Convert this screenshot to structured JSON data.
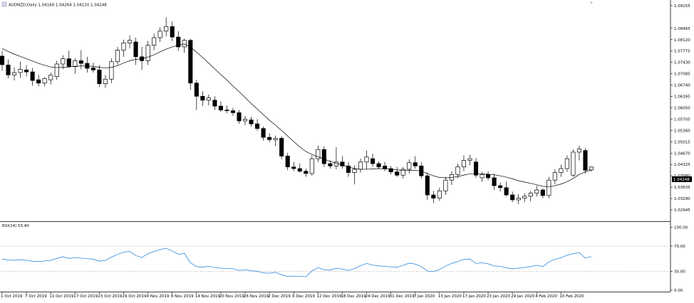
{
  "header": {
    "title": "AUDNZD,Daily  1.04160 1.04264 1.04110 1.04248"
  },
  "rsi_header": {
    "label": "RSI(14) 53.40"
  },
  "current_price_label": "1.04248",
  "colors": {
    "bull_fill": "#ffffff",
    "bear_fill": "#000000",
    "candle_outline": "#000000",
    "ma_line": "#000000",
    "rsi_line": "#2a8ae0",
    "level_line": "#b0b0b0",
    "axis": "#000000"
  },
  "chart_data": [
    {
      "type": "candlestick",
      "symbol": "AUDNZD",
      "timeframe": "Daily",
      "ohlc": {
        "open": 1.0416,
        "high": 1.04264,
        "low": 1.0411,
        "close": 1.04248
      },
      "ylim": [
        1.026,
        1.0924
      ],
      "yticks": [
        "1.09155",
        "1.08465",
        "1.08120",
        "1.07775",
        "1.07430",
        "1.07085",
        "1.06740",
        "1.06395",
        "1.06050",
        "1.05705",
        "1.05360",
        "1.05015",
        "1.04670",
        "1.04325",
        "1.03980",
        "1.03635",
        "1.03290",
        "1.02945"
      ],
      "xticks": [
        "1 Oct 2019",
        "7 Oct 2019",
        "11 Oct 2019",
        "17 Oct 2019",
        "23 Oct 2019",
        "29 Oct 2019",
        "4 Nov 2019",
        "8 Nov 2019",
        "14 Nov 2019",
        "20 Nov 2019",
        "26 Nov 2019",
        "2 Dec 2019",
        "6 Dec 2019",
        "12 Dec 2019",
        "18 Dec 2019",
        "24 Dec 2019",
        "31 Dec 2019",
        "7 Jan 2020",
        "13 Jan 2020",
        "17 Jan 2020",
        "23 Jan 2020",
        "29 Jan 2020",
        "4 Feb 2020",
        "10 Feb 2020"
      ],
      "candles": [
        {
          "o": 1.0762,
          "h": 1.0778,
          "l": 1.0718,
          "c": 1.0736
        },
        {
          "o": 1.0735,
          "h": 1.0752,
          "l": 1.0695,
          "c": 1.0705
        },
        {
          "o": 1.0705,
          "h": 1.0728,
          "l": 1.0688,
          "c": 1.0712
        },
        {
          "o": 1.0712,
          "h": 1.0745,
          "l": 1.0696,
          "c": 1.0722
        },
        {
          "o": 1.072,
          "h": 1.0735,
          "l": 1.07,
          "c": 1.0714
        },
        {
          "o": 1.0714,
          "h": 1.0726,
          "l": 1.0672,
          "c": 1.0688
        },
        {
          "o": 1.069,
          "h": 1.0705,
          "l": 1.067,
          "c": 1.068
        },
        {
          "o": 1.068,
          "h": 1.0698,
          "l": 1.067,
          "c": 1.0694
        },
        {
          "o": 1.069,
          "h": 1.0712,
          "l": 1.0676,
          "c": 1.0704
        },
        {
          "o": 1.07,
          "h": 1.0748,
          "l": 1.069,
          "c": 1.0738
        },
        {
          "o": 1.0738,
          "h": 1.0765,
          "l": 1.0722,
          "c": 1.0754
        },
        {
          "o": 1.0754,
          "h": 1.0778,
          "l": 1.0726,
          "c": 1.0731
        },
        {
          "o": 1.073,
          "h": 1.0755,
          "l": 1.0708,
          "c": 1.0748
        },
        {
          "o": 1.0748,
          "h": 1.078,
          "l": 1.0722,
          "c": 1.074
        },
        {
          "o": 1.074,
          "h": 1.076,
          "l": 1.0712,
          "c": 1.0725
        },
        {
          "o": 1.0726,
          "h": 1.0742,
          "l": 1.0712,
          "c": 1.072
        },
        {
          "o": 1.072,
          "h": 1.0735,
          "l": 1.0668,
          "c": 1.0678
        },
        {
          "o": 1.0678,
          "h": 1.0705,
          "l": 1.0665,
          "c": 1.0692
        },
        {
          "o": 1.0692,
          "h": 1.0755,
          "l": 1.068,
          "c": 1.0745
        },
        {
          "o": 1.0745,
          "h": 1.079,
          "l": 1.0735,
          "c": 1.078
        },
        {
          "o": 1.078,
          "h": 1.0812,
          "l": 1.076,
          "c": 1.0802
        },
        {
          "o": 1.0802,
          "h": 1.0825,
          "l": 1.0785,
          "c": 1.081
        },
        {
          "o": 1.0805,
          "h": 1.0818,
          "l": 1.0735,
          "c": 1.076
        },
        {
          "o": 1.076,
          "h": 1.079,
          "l": 1.072,
          "c": 1.0748
        },
        {
          "o": 1.0748,
          "h": 1.0808,
          "l": 1.0735,
          "c": 1.0795
        },
        {
          "o": 1.0795,
          "h": 1.083,
          "l": 1.078,
          "c": 1.0818
        },
        {
          "o": 1.0818,
          "h": 1.085,
          "l": 1.0805,
          "c": 1.0838
        },
        {
          "o": 1.0838,
          "h": 1.088,
          "l": 1.0822,
          "c": 1.0852
        },
        {
          "o": 1.0852,
          "h": 1.0868,
          "l": 1.0808,
          "c": 1.082
        },
        {
          "o": 1.082,
          "h": 1.0838,
          "l": 1.0778,
          "c": 1.079
        },
        {
          "o": 1.079,
          "h": 1.0815,
          "l": 1.0772,
          "c": 1.081
        },
        {
          "o": 1.081,
          "h": 1.0815,
          "l": 1.066,
          "c": 1.068
        },
        {
          "o": 1.068,
          "h": 1.069,
          "l": 1.0598,
          "c": 1.064
        },
        {
          "o": 1.064,
          "h": 1.0655,
          "l": 1.061,
          "c": 1.0628
        },
        {
          "o": 1.0628,
          "h": 1.0645,
          "l": 1.0612,
          "c": 1.0635
        },
        {
          "o": 1.0628,
          "h": 1.064,
          "l": 1.0598,
          "c": 1.061
        },
        {
          "o": 1.061,
          "h": 1.0625,
          "l": 1.0592,
          "c": 1.0598
        },
        {
          "o": 1.0598,
          "h": 1.0612,
          "l": 1.0588,
          "c": 1.0596
        },
        {
          "o": 1.0596,
          "h": 1.0605,
          "l": 1.058,
          "c": 1.059
        },
        {
          "o": 1.059,
          "h": 1.0598,
          "l": 1.0556,
          "c": 1.0565
        },
        {
          "o": 1.0565,
          "h": 1.058,
          "l": 1.0552,
          "c": 1.057
        },
        {
          "o": 1.0568,
          "h": 1.0578,
          "l": 1.0548,
          "c": 1.0556
        },
        {
          "o": 1.0556,
          "h": 1.057,
          "l": 1.0535,
          "c": 1.0542
        },
        {
          "o": 1.0542,
          "h": 1.0548,
          "l": 1.0505,
          "c": 1.0515
        },
        {
          "o": 1.0515,
          "h": 1.0528,
          "l": 1.05,
          "c": 1.0508
        },
        {
          "o": 1.0508,
          "h": 1.052,
          "l": 1.0488,
          "c": 1.0512
        },
        {
          "o": 1.0512,
          "h": 1.0518,
          "l": 1.0448,
          "c": 1.0458
        },
        {
          "o": 1.0458,
          "h": 1.0468,
          "l": 1.0415,
          "c": 1.0425
        },
        {
          "o": 1.0425,
          "h": 1.044,
          "l": 1.0412,
          "c": 1.042
        },
        {
          "o": 1.042,
          "h": 1.0436,
          "l": 1.0408,
          "c": 1.0412
        },
        {
          "o": 1.0412,
          "h": 1.042,
          "l": 1.0395,
          "c": 1.0405
        },
        {
          "o": 1.0405,
          "h": 1.046,
          "l": 1.0398,
          "c": 1.045
        },
        {
          "o": 1.045,
          "h": 1.049,
          "l": 1.044,
          "c": 1.0478
        },
        {
          "o": 1.0478,
          "h": 1.0488,
          "l": 1.0425,
          "c": 1.0435
        },
        {
          "o": 1.0435,
          "h": 1.0445,
          "l": 1.042,
          "c": 1.0428
        },
        {
          "o": 1.0428,
          "h": 1.0485,
          "l": 1.0418,
          "c": 1.044
        },
        {
          "o": 1.044,
          "h": 1.0458,
          "l": 1.042,
          "c": 1.0428
        },
        {
          "o": 1.0428,
          "h": 1.044,
          "l": 1.0395,
          "c": 1.0408
        },
        {
          "o": 1.0408,
          "h": 1.043,
          "l": 1.0372,
          "c": 1.0418
        },
        {
          "o": 1.0418,
          "h": 1.045,
          "l": 1.0408,
          "c": 1.044
        },
        {
          "o": 1.044,
          "h": 1.0475,
          "l": 1.0418,
          "c": 1.0455
        },
        {
          "o": 1.045,
          "h": 1.0465,
          "l": 1.0425,
          "c": 1.0435
        },
        {
          "o": 1.0435,
          "h": 1.0442,
          "l": 1.0418,
          "c": 1.0425
        },
        {
          "o": 1.0428,
          "h": 1.044,
          "l": 1.0412,
          "c": 1.042
        },
        {
          "o": 1.042,
          "h": 1.0428,
          "l": 1.0402,
          "c": 1.041
        },
        {
          "o": 1.041,
          "h": 1.0425,
          "l": 1.0395,
          "c": 1.04
        },
        {
          "o": 1.04,
          "h": 1.0425,
          "l": 1.039,
          "c": 1.0418
        },
        {
          "o": 1.0418,
          "h": 1.0448,
          "l": 1.0405,
          "c": 1.0438
        },
        {
          "o": 1.0438,
          "h": 1.0458,
          "l": 1.042,
          "c": 1.0428
        },
        {
          "o": 1.0428,
          "h": 1.044,
          "l": 1.039,
          "c": 1.0398
        },
        {
          "o": 1.0398,
          "h": 1.0408,
          "l": 1.0325,
          "c": 1.034
        },
        {
          "o": 1.034,
          "h": 1.0352,
          "l": 1.0315,
          "c": 1.033
        },
        {
          "o": 1.033,
          "h": 1.0362,
          "l": 1.0322,
          "c": 1.0352
        },
        {
          "o": 1.0352,
          "h": 1.0395,
          "l": 1.034,
          "c": 1.0385
        },
        {
          "o": 1.0385,
          "h": 1.0412,
          "l": 1.037,
          "c": 1.0402
        },
        {
          "o": 1.0402,
          "h": 1.0435,
          "l": 1.039,
          "c": 1.0425
        },
        {
          "o": 1.0425,
          "h": 1.046,
          "l": 1.0412,
          "c": 1.0445
        },
        {
          "o": 1.0445,
          "h": 1.0462,
          "l": 1.043,
          "c": 1.045
        },
        {
          "o": 1.044,
          "h": 1.0452,
          "l": 1.0392,
          "c": 1.04
        },
        {
          "o": 1.0392,
          "h": 1.041,
          "l": 1.038,
          "c": 1.0402
        },
        {
          "o": 1.0402,
          "h": 1.0412,
          "l": 1.0385,
          "c": 1.0392
        },
        {
          "o": 1.0392,
          "h": 1.0405,
          "l": 1.0355,
          "c": 1.0368
        },
        {
          "o": 1.0368,
          "h": 1.0378,
          "l": 1.035,
          "c": 1.0362
        },
        {
          "o": 1.0362,
          "h": 1.038,
          "l": 1.0335,
          "c": 1.034
        },
        {
          "o": 1.034,
          "h": 1.035,
          "l": 1.0318,
          "c": 1.0325
        },
        {
          "o": 1.0325,
          "h": 1.0342,
          "l": 1.0312,
          "c": 1.033
        },
        {
          "o": 1.033,
          "h": 1.0345,
          "l": 1.0318,
          "c": 1.0336
        },
        {
          "o": 1.0336,
          "h": 1.0352,
          "l": 1.032,
          "c": 1.0345
        },
        {
          "o": 1.0345,
          "h": 1.0368,
          "l": 1.0335,
          "c": 1.0355
        },
        {
          "o": 1.0355,
          "h": 1.036,
          "l": 1.033,
          "c": 1.0338
        },
        {
          "o": 1.0338,
          "h": 1.0395,
          "l": 1.033,
          "c": 1.0385
        },
        {
          "o": 1.0385,
          "h": 1.0418,
          "l": 1.0372,
          "c": 1.0408
        },
        {
          "o": 1.0408,
          "h": 1.0432,
          "l": 1.0395,
          "c": 1.042
        },
        {
          "o": 1.042,
          "h": 1.046,
          "l": 1.041,
          "c": 1.045
        },
        {
          "o": 1.04,
          "h": 1.0478,
          "l": 1.0395,
          "c": 1.047
        },
        {
          "o": 1.047,
          "h": 1.049,
          "l": 1.0445,
          "c": 1.048
        },
        {
          "o": 1.0475,
          "h": 1.0482,
          "l": 1.0405,
          "c": 1.0415
        },
        {
          "o": 1.0416,
          "h": 1.04264,
          "l": 1.0411,
          "c": 1.04248
        }
      ],
      "ma": [
        1.0785,
        1.0776,
        1.0768,
        1.0761,
        1.0754,
        1.0747,
        1.074,
        1.0734,
        1.0729,
        1.0727,
        1.0728,
        1.0729,
        1.0731,
        1.0732,
        1.0732,
        1.0731,
        1.0728,
        1.0726,
        1.0728,
        1.0733,
        1.0741,
        1.0748,
        1.0752,
        1.0754,
        1.0759,
        1.0766,
        1.0775,
        1.0783,
        1.079,
        1.0795,
        1.0799,
        1.079,
        1.0774,
        1.0758,
        1.0741,
        1.0723,
        1.0706,
        1.0689,
        1.0671,
        1.0654,
        1.0636,
        1.0618,
        1.0601,
        1.0584,
        1.0567,
        1.0552,
        1.0536,
        1.0519,
        1.0502,
        1.0486,
        1.0472,
        1.0463,
        1.0456,
        1.0449,
        1.0442,
        1.0436,
        1.0431,
        1.0425,
        1.042,
        1.0418,
        1.0418,
        1.0419,
        1.042,
        1.0419,
        1.0418,
        1.0416,
        1.0415,
        1.0415,
        1.0415,
        1.0412,
        1.0405,
        1.0398,
        1.0393,
        1.0392,
        1.0393,
        1.0396,
        1.04,
        1.0404,
        1.0405,
        1.0404,
        1.0403,
        1.0401,
        1.0398,
        1.0394,
        1.0389,
        1.0383,
        1.0379,
        1.0375,
        1.0371,
        1.0366,
        1.0365,
        1.0368,
        1.0373,
        1.038,
        1.039,
        1.0402,
        1.041,
        1.0416
      ]
    },
    {
      "type": "line",
      "name": "RSI(14)",
      "last_value": 53.4,
      "ylim": [
        0,
        100
      ],
      "yticks": [
        "100.00",
        "70.00",
        "30.00",
        "0.00"
      ],
      "levels": [
        70,
        30
      ],
      "values": [
        49.5,
        48.0,
        47.5,
        48.5,
        47.5,
        46.0,
        45.5,
        46.5,
        47.5,
        50.5,
        53.0,
        50.5,
        52.0,
        51.0,
        50.0,
        49.5,
        46.0,
        47.5,
        52.5,
        57.0,
        60.5,
        61.5,
        55.0,
        52.0,
        58.0,
        61.5,
        64.5,
        66.5,
        62.5,
        57.0,
        58.5,
        43.5,
        37.5,
        36.5,
        38.0,
        36.0,
        35.0,
        34.5,
        34.0,
        31.5,
        32.5,
        31.0,
        30.0,
        27.5,
        27.0,
        28.5,
        24.5,
        22.0,
        22.5,
        22.0,
        21.5,
        30.5,
        36.0,
        32.5,
        32.0,
        35.0,
        33.5,
        31.5,
        34.5,
        39.0,
        42.5,
        40.0,
        38.5,
        38.0,
        37.0,
        36.5,
        39.5,
        43.0,
        41.5,
        37.5,
        30.5,
        29.5,
        33.0,
        38.5,
        42.5,
        45.5,
        49.0,
        49.5,
        42.5,
        43.5,
        42.0,
        38.5,
        38.0,
        35.5,
        34.0,
        35.0,
        36.0,
        37.5,
        39.5,
        37.5,
        45.0,
        49.0,
        51.5,
        55.5,
        58.0,
        59.5,
        51.0,
        53.4
      ]
    }
  ]
}
